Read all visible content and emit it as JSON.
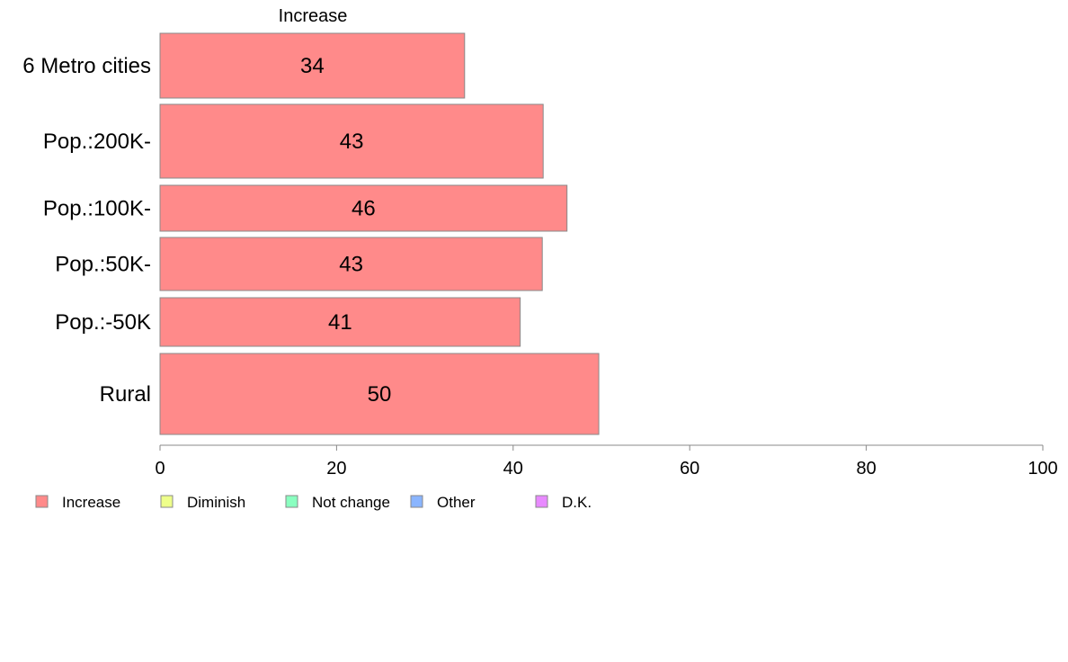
{
  "chart_data": {
    "type": "bar",
    "orientation": "horizontal",
    "title": "",
    "xlabel": "",
    "ylabel": "",
    "series_title": "Increase",
    "categories": [
      "6 Metro cities",
      "Pop.:200K-",
      "Pop.:100K-",
      "Pop.:50K-",
      "Pop.:-50K",
      "Rural"
    ],
    "series": [
      {
        "name": "Increase",
        "values": [
          34.5,
          43.4,
          46.1,
          43.3,
          40.8,
          49.7
        ],
        "labels": [
          "34",
          "43",
          "46",
          "43",
          "41",
          "50"
        ]
      }
    ],
    "xlim": [
      0,
      100
    ],
    "xticks": [
      "0",
      "20",
      "40",
      "60",
      "80",
      "100"
    ],
    "xtick_values": [
      0,
      20,
      40,
      60,
      80,
      100
    ],
    "grid": false,
    "legend_position": "bottom-left",
    "legend": [
      {
        "label": "Increase",
        "color": "#ff8a8a"
      },
      {
        "label": "Diminish",
        "color": "#eeff8a"
      },
      {
        "label": "Not change",
        "color": "#8affc0"
      },
      {
        "label": "Other",
        "color": "#8ab5ff"
      },
      {
        "label": "D.K.",
        "color": "#e88aff"
      }
    ],
    "bar_color": "#ff8a8a",
    "bar_border_color": "#888888",
    "axis_color": "#888888"
  }
}
